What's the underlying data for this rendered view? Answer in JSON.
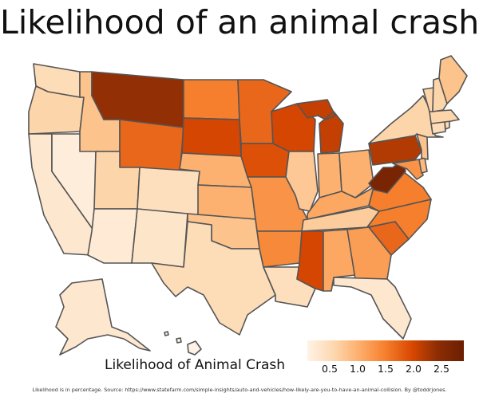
{
  "title": "Likelihood of an animal crash",
  "legend": {
    "label": "Likelihood of Animal Crash",
    "ticks": [
      "0.5",
      "1.0",
      "1.5",
      "2.0",
      "2.5"
    ],
    "tick_values": [
      0.5,
      1.0,
      1.5,
      2.0,
      2.5
    ],
    "range": [
      0.1,
      2.9
    ],
    "colors": [
      "#fef3e6",
      "#fdd8b0",
      "#fdae6b",
      "#f57f2c",
      "#d94801",
      "#8c2d04",
      "#6b1e02"
    ]
  },
  "source": "Likelihood is in percentage. Source: https://www.statefarm.com/simple-insights/auto-and-vehicles/how-likely-are-you-to-have-an-animal-collision. By @toddrjones.",
  "states": [
    {
      "id": "WA",
      "value": 0.5
    },
    {
      "id": "OR",
      "value": 0.6
    },
    {
      "id": "CA",
      "value": 0.3
    },
    {
      "id": "NV",
      "value": 0.2
    },
    {
      "id": "ID",
      "value": 0.8
    },
    {
      "id": "MT",
      "value": 2.4
    },
    {
      "id": "WY",
      "value": 1.7
    },
    {
      "id": "UT",
      "value": 0.6
    },
    {
      "id": "AZ",
      "value": 0.25
    },
    {
      "id": "CO",
      "value": 0.45
    },
    {
      "id": "NM",
      "value": 0.35
    },
    {
      "id": "ND",
      "value": 1.5
    },
    {
      "id": "SD",
      "value": 2.0
    },
    {
      "id": "NE",
      "value": 1.0
    },
    {
      "id": "KS",
      "value": 1.0
    },
    {
      "id": "OK",
      "value": 0.8
    },
    {
      "id": "TX",
      "value": 0.5
    },
    {
      "id": "MN",
      "value": 1.7
    },
    {
      "id": "IA",
      "value": 1.9
    },
    {
      "id": "MO",
      "value": 1.3
    },
    {
      "id": "AR",
      "value": 1.4
    },
    {
      "id": "LA",
      "value": 0.45
    },
    {
      "id": "WI",
      "value": 2.0
    },
    {
      "id": "IL",
      "value": 0.75
    },
    {
      "id": "MI",
      "value": 2.1
    },
    {
      "id": "IN",
      "value": 1.0
    },
    {
      "id": "OH",
      "value": 1.0
    },
    {
      "id": "KY",
      "value": 1.1
    },
    {
      "id": "TN",
      "value": 0.7
    },
    {
      "id": "MS",
      "value": 2.0
    },
    {
      "id": "AL",
      "value": 1.1
    },
    {
      "id": "GA",
      "value": 1.2
    },
    {
      "id": "FL",
      "value": 0.3
    },
    {
      "id": "SC",
      "value": 1.7
    },
    {
      "id": "NC",
      "value": 1.5
    },
    {
      "id": "VA",
      "value": 1.5
    },
    {
      "id": "WV",
      "value": 2.7
    },
    {
      "id": "PA",
      "value": 2.2
    },
    {
      "id": "NY",
      "value": 0.6
    },
    {
      "id": "ME",
      "value": 0.8
    },
    {
      "id": "VT",
      "value": 0.6
    },
    {
      "id": "NH",
      "value": 0.6
    },
    {
      "id": "MA",
      "value": 0.6
    },
    {
      "id": "CT",
      "value": 0.5
    },
    {
      "id": "RI",
      "value": 0.5
    },
    {
      "id": "NJ",
      "value": 0.8
    },
    {
      "id": "DE",
      "value": 0.9
    },
    {
      "id": "MD",
      "value": 1.3
    },
    {
      "id": "AK",
      "value": 0.3
    },
    {
      "id": "HI",
      "value": 0.1
    }
  ]
}
